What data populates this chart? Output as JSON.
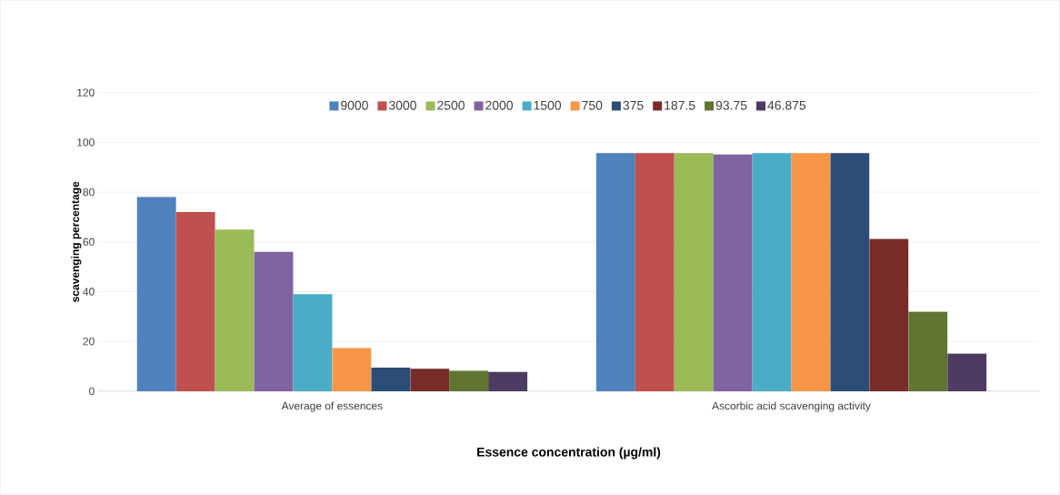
{
  "chart_data": {
    "type": "bar",
    "xlabel": "Essence concentration (µg/ml)",
    "ylabel": "scavenging percentage",
    "categories": [
      "Average of essences",
      "Ascorbic acid scavenging  activity"
    ],
    "series": [
      {
        "name": "9000",
        "color": "#4f81bd",
        "values": [
          78,
          95.7
        ]
      },
      {
        "name": "3000",
        "color": "#c0504d",
        "values": [
          72,
          95.7
        ]
      },
      {
        "name": "2500",
        "color": "#9bbb59",
        "values": [
          65,
          95.7
        ]
      },
      {
        "name": "2000",
        "color": "#8064a2",
        "values": [
          56,
          95.1
        ]
      },
      {
        "name": "1500",
        "color": "#4bacc6",
        "values": [
          39,
          95.7
        ]
      },
      {
        "name": "750",
        "color": "#f79646",
        "values": [
          17.3,
          95.7
        ]
      },
      {
        "name": "375",
        "color": "#2c4d75",
        "values": [
          9.5,
          95.7
        ]
      },
      {
        "name": "187.5",
        "color": "#772c2a",
        "values": [
          9,
          61.2
        ]
      },
      {
        "name": "93.75",
        "color": "#5f7530",
        "values": [
          8.2,
          32
        ]
      },
      {
        "name": "46.875",
        "color": "#4d3b62",
        "values": [
          7.7,
          15.1
        ]
      }
    ],
    "ylim": [
      0,
      120
    ],
    "yticks": [
      0,
      20,
      40,
      60,
      80,
      100,
      120
    ],
    "grid": "y",
    "legend": "top"
  }
}
